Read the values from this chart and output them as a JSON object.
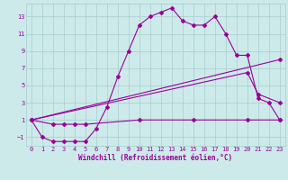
{
  "xlabel": "Windchill (Refroidissement éolien,°C)",
  "background_color": "#cdeaea",
  "grid_color": "#a8cccc",
  "line_color": "#990099",
  "xlim": [
    -0.5,
    23.5
  ],
  "ylim": [
    -2,
    14.5
  ],
  "xticks": [
    0,
    1,
    2,
    3,
    4,
    5,
    6,
    7,
    8,
    9,
    10,
    11,
    12,
    13,
    14,
    15,
    16,
    17,
    18,
    19,
    20,
    21,
    22,
    23
  ],
  "yticks": [
    -1,
    1,
    3,
    5,
    7,
    9,
    11,
    13
  ],
  "line1_x": [
    0,
    1,
    2,
    3,
    4,
    5,
    6,
    7,
    8,
    9,
    10,
    11,
    12,
    13,
    14,
    15,
    16,
    17,
    18,
    19,
    20,
    21,
    22,
    23
  ],
  "line1_y": [
    1,
    -1,
    -1.5,
    -1.5,
    -1.5,
    -1.5,
    0,
    2.5,
    6,
    9,
    12,
    13,
    13.5,
    14,
    12.5,
    12,
    12,
    13,
    11,
    8.5,
    8.5,
    3.5,
    3,
    1
  ],
  "line2_x": [
    0,
    2,
    3,
    4,
    5,
    10,
    15,
    20,
    23
  ],
  "line2_y": [
    1,
    0.5,
    0.5,
    0.5,
    0.5,
    1,
    1,
    1,
    1
  ],
  "line3_x": [
    0,
    23
  ],
  "line3_y": [
    1,
    8
  ],
  "line4_x": [
    0,
    20,
    21,
    23
  ],
  "line4_y": [
    1,
    6.5,
    4,
    3
  ]
}
